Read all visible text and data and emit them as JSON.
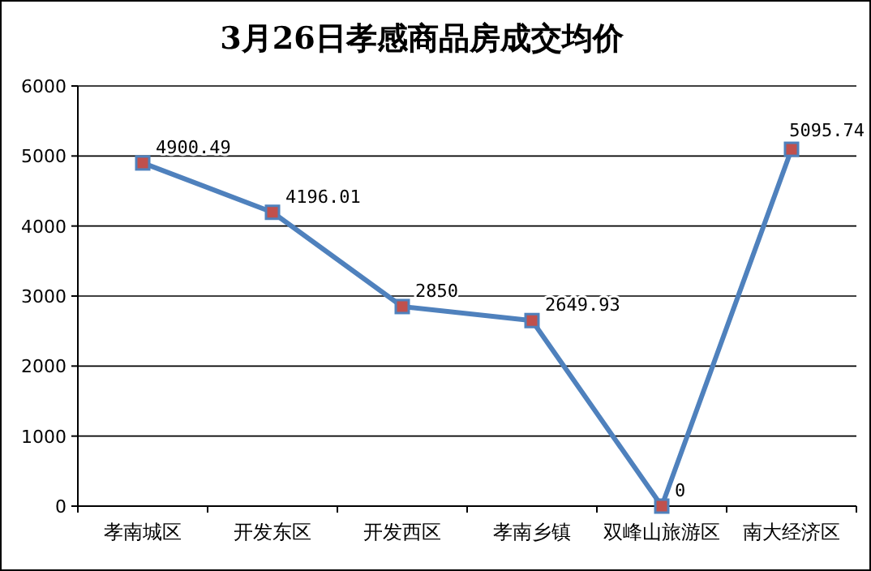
{
  "chart_data": {
    "type": "line",
    "title": "3月26日孝感商品房成交均价",
    "categories": [
      "孝南城区",
      "开发东区",
      "开发西区",
      "孝南乡镇",
      "双峰山旅游区",
      "南大经济区"
    ],
    "series": [
      {
        "color": "#4f81bd",
        "values": [
          4900.49,
          4196.01,
          2850,
          2649.93,
          0,
          5095.74
        ]
      }
    ],
    "ylim": [
      0,
      6000
    ],
    "yticks": [
      0,
      1000,
      2000,
      3000,
      4000,
      5000,
      6000
    ],
    "grid": "y",
    "marker": "square",
    "line_style": "solid",
    "data_labels": true
  }
}
